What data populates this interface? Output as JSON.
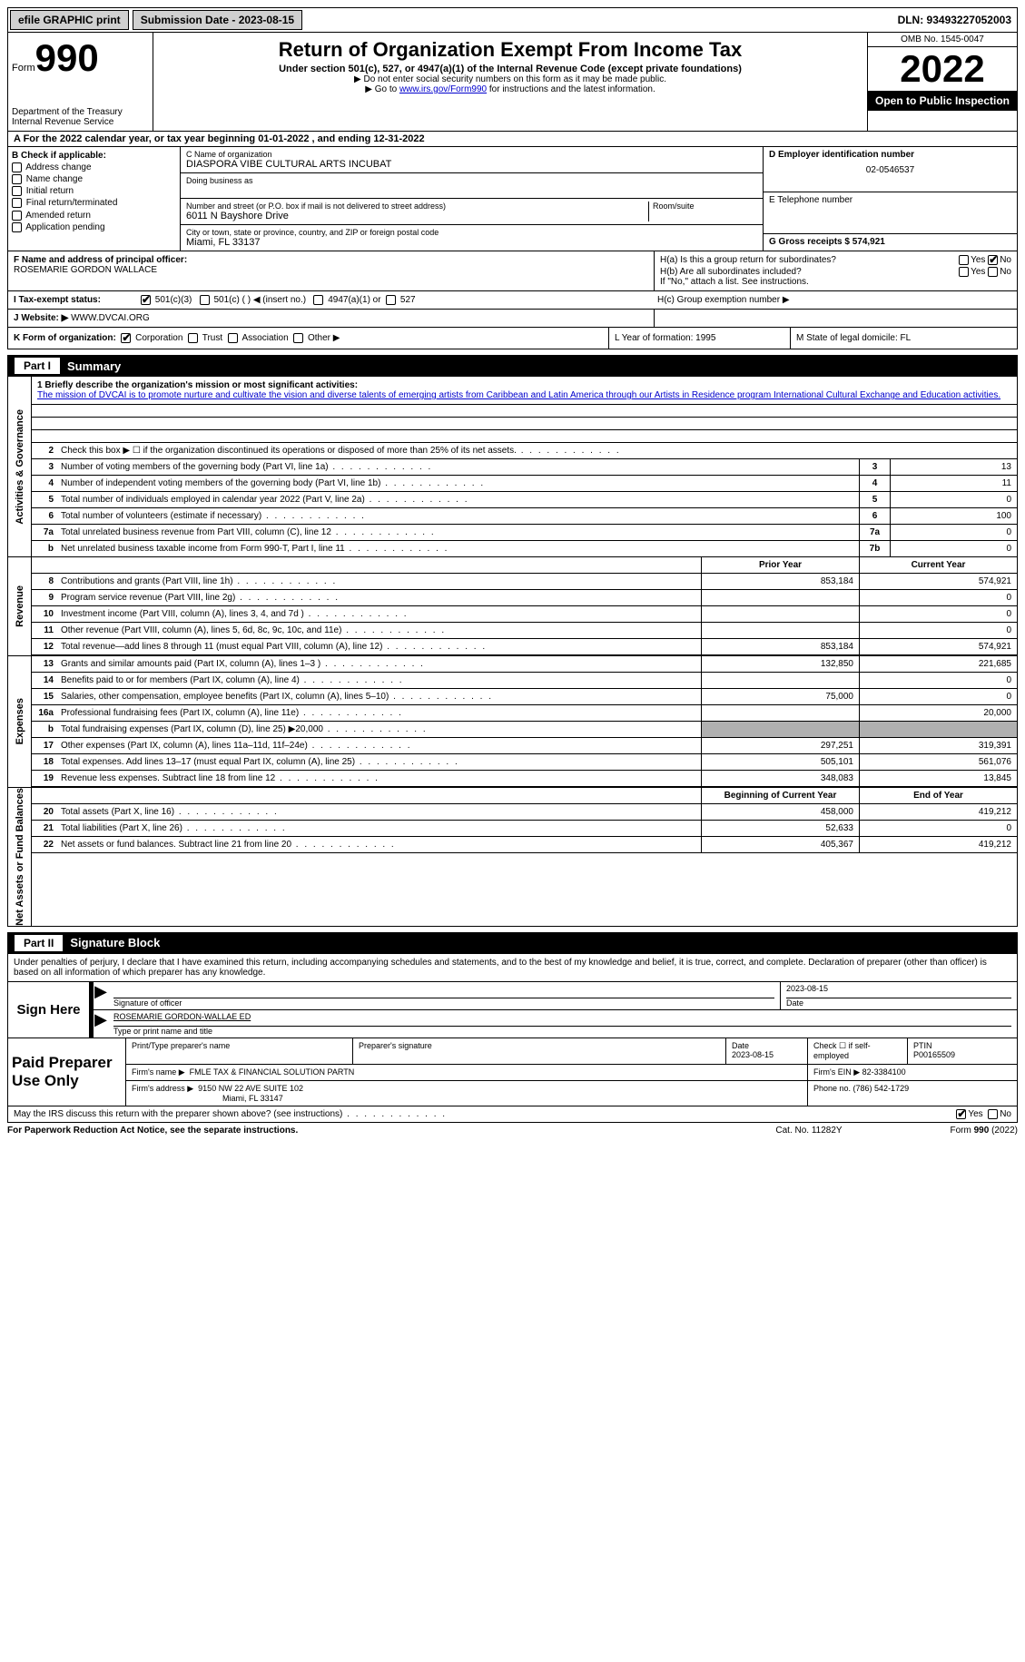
{
  "topbar": {
    "efile": "efile GRAPHIC print",
    "submission_label": "Submission Date - 2023-08-15",
    "dln": "DLN: 93493227052003"
  },
  "header": {
    "form_word": "Form",
    "form_num": "990",
    "title": "Return of Organization Exempt From Income Tax",
    "subtitle": "Under section 501(c), 527, or 4947(a)(1) of the Internal Revenue Code (except private foundations)",
    "note1": "▶ Do not enter social security numbers on this form as it may be made public.",
    "note2_pre": "▶ Go to ",
    "note2_link": "www.irs.gov/Form990",
    "note2_post": " for instructions and the latest information.",
    "dept": "Department of the Treasury",
    "irs": "Internal Revenue Service",
    "omb": "OMB No. 1545-0047",
    "year": "2022",
    "inspection": "Open to Public Inspection"
  },
  "row_a": "A For the 2022 calendar year, or tax year beginning 01-01-2022    , and ending 12-31-2022",
  "section_b": {
    "label": "B Check if applicable:",
    "opts": [
      "Address change",
      "Name change",
      "Initial return",
      "Final return/terminated",
      "Amended return",
      "Application pending"
    ]
  },
  "section_c": {
    "name_label": "C Name of organization",
    "name_val": "DIASPORA VIBE CULTURAL ARTS INCUBAT",
    "dba_label": "Doing business as",
    "addr_label": "Number and street (or P.O. box if mail is not delivered to street address)",
    "room_label": "Room/suite",
    "addr_val": "6011 N Bayshore Drive",
    "city_label": "City or town, state or province, country, and ZIP or foreign postal code",
    "city_val": "Miami, FL  33137"
  },
  "section_d": {
    "ein_label": "D Employer identification number",
    "ein_val": "02-0546537",
    "tel_label": "E Telephone number",
    "gross_label": "G Gross receipts $ 574,921"
  },
  "section_f": {
    "f_label": "F  Name and address of principal officer:",
    "f_val": "ROSEMARIE GORDON WALLACE",
    "ha": "H(a)  Is this a group return for subordinates?",
    "hb": "H(b)  Are all subordinates included?",
    "hb_note": "If \"No,\" attach a list. See instructions.",
    "hc": "H(c)  Group exemption number ▶"
  },
  "tax_status": {
    "label": "I    Tax-exempt status:",
    "opts": [
      "501(c)(3)",
      "501(c) (  ) ◀ (insert no.)",
      "4947(a)(1) or",
      "527"
    ]
  },
  "website": {
    "label": "J   Website: ▶",
    "val": "  WWW.DVCAI.ORG"
  },
  "korg": {
    "label": "K Form of organization:",
    "opts": [
      "Corporation",
      "Trust",
      "Association",
      "Other ▶"
    ],
    "year_label": "L Year of formation: 1995",
    "state_label": "M State of legal domicile: FL"
  },
  "part1": {
    "num": "Part I",
    "title": "Summary"
  },
  "mission": {
    "lead": "1   Briefly describe the organization's mission or most significant activities:",
    "text": "The mission of DVCAI is to promote nurture and cultivate the vision and diverse talents of emerging artists from Caribbean and Latin America through our Artists in Residence program International Cultural Exchange and Education activities."
  },
  "gov_lines": [
    {
      "n": "2",
      "d": "Check this box ▶ ☐  if the organization discontinued its operations or disposed of more than 25% of its net assets.",
      "b": "",
      "v": ""
    },
    {
      "n": "3",
      "d": "Number of voting members of the governing body (Part VI, line 1a)",
      "b": "3",
      "v": "13"
    },
    {
      "n": "4",
      "d": "Number of independent voting members of the governing body (Part VI, line 1b)",
      "b": "4",
      "v": "11"
    },
    {
      "n": "5",
      "d": "Total number of individuals employed in calendar year 2022 (Part V, line 2a)",
      "b": "5",
      "v": "0"
    },
    {
      "n": "6",
      "d": "Total number of volunteers (estimate if necessary)",
      "b": "6",
      "v": "100"
    },
    {
      "n": "7a",
      "d": "Total unrelated business revenue from Part VIII, column (C), line 12",
      "b": "7a",
      "v": "0"
    },
    {
      "n": "b",
      "d": "Net unrelated business taxable income from Form 990-T, Part I, line 11",
      "b": "7b",
      "v": "0"
    }
  ],
  "rev_header": {
    "prior": "Prior Year",
    "curr": "Current Year"
  },
  "rev_lines": [
    {
      "n": "8",
      "d": "Contributions and grants (Part VIII, line 1h)",
      "p": "853,184",
      "c": "574,921"
    },
    {
      "n": "9",
      "d": "Program service revenue (Part VIII, line 2g)",
      "p": "",
      "c": "0"
    },
    {
      "n": "10",
      "d": "Investment income (Part VIII, column (A), lines 3, 4, and 7d )",
      "p": "",
      "c": "0"
    },
    {
      "n": "11",
      "d": "Other revenue (Part VIII, column (A), lines 5, 6d, 8c, 9c, 10c, and 11e)",
      "p": "",
      "c": "0"
    },
    {
      "n": "12",
      "d": "Total revenue—add lines 8 through 11 (must equal Part VIII, column (A), line 12)",
      "p": "853,184",
      "c": "574,921"
    }
  ],
  "exp_lines": [
    {
      "n": "13",
      "d": "Grants and similar amounts paid (Part IX, column (A), lines 1–3 )",
      "p": "132,850",
      "c": "221,685"
    },
    {
      "n": "14",
      "d": "Benefits paid to or for members (Part IX, column (A), line 4)",
      "p": "",
      "c": "0"
    },
    {
      "n": "15",
      "d": "Salaries, other compensation, employee benefits (Part IX, column (A), lines 5–10)",
      "p": "75,000",
      "c": "0"
    },
    {
      "n": "16a",
      "d": "Professional fundraising fees (Part IX, column (A), line 11e)",
      "p": "",
      "c": "20,000"
    },
    {
      "n": "b",
      "d": "Total fundraising expenses (Part IX, column (D), line 25) ▶20,000",
      "p": "grey",
      "c": "grey"
    },
    {
      "n": "17",
      "d": "Other expenses (Part IX, column (A), lines 11a–11d, 11f–24e)",
      "p": "297,251",
      "c": "319,391"
    },
    {
      "n": "18",
      "d": "Total expenses. Add lines 13–17 (must equal Part IX, column (A), line 25)",
      "p": "505,101",
      "c": "561,076"
    },
    {
      "n": "19",
      "d": "Revenue less expenses. Subtract line 18 from line 12",
      "p": "348,083",
      "c": "13,845"
    }
  ],
  "net_header": {
    "prior": "Beginning of Current Year",
    "curr": "End of Year"
  },
  "net_lines": [
    {
      "n": "20",
      "d": "Total assets (Part X, line 16)",
      "p": "458,000",
      "c": "419,212"
    },
    {
      "n": "21",
      "d": "Total liabilities (Part X, line 26)",
      "p": "52,633",
      "c": "0"
    },
    {
      "n": "22",
      "d": "Net assets or fund balances. Subtract line 21 from line 20",
      "p": "405,367",
      "c": "419,212"
    }
  ],
  "vtabs": {
    "gov": "Activities & Governance",
    "rev": "Revenue",
    "exp": "Expenses",
    "net": "Net Assets or Fund Balances"
  },
  "part2": {
    "num": "Part II",
    "title": "Signature Block"
  },
  "sig_text": "Under penalties of perjury, I declare that I have examined this return, including accompanying schedules and statements, and to the best of my knowledge and belief, it is true, correct, and complete. Declaration of preparer (other than officer) is based on all information of which preparer has any knowledge.",
  "sign": {
    "label": "Sign Here",
    "sig_of_officer": "Signature of officer",
    "date": "2023-08-15",
    "date_label": "Date",
    "name": "ROSEMARIE GORDON-WALLAE  ED",
    "name_label": "Type or print name and title"
  },
  "paid": {
    "label": "Paid Preparer Use Only",
    "h_name": "Print/Type preparer's name",
    "h_sig": "Preparer's signature",
    "h_date": "Date",
    "h_date_val": "2023-08-15",
    "h_check": "Check ☐ if self-employed",
    "h_ptin": "PTIN",
    "h_ptin_val": "P00165509",
    "firm_name_label": "Firm's name      ▶",
    "firm_name": "FMLE TAX & FINANCIAL SOLUTION PARTN",
    "firm_ein": "Firm's EIN ▶ 82-3384100",
    "firm_addr_label": "Firm's address ▶",
    "firm_addr": "9150 NW 22 AVE SUITE 102",
    "firm_city": "Miami, FL  33147",
    "phone": "Phone no. (786) 542-1729"
  },
  "discuss": "May the IRS discuss this return with the preparer shown above? (see instructions)",
  "footer": {
    "left": "For Paperwork Reduction Act Notice, see the separate instructions.",
    "mid": "Cat. No. 11282Y",
    "right": "Form 990 (2022)"
  },
  "yn": {
    "yes": "Yes",
    "no": "No"
  }
}
